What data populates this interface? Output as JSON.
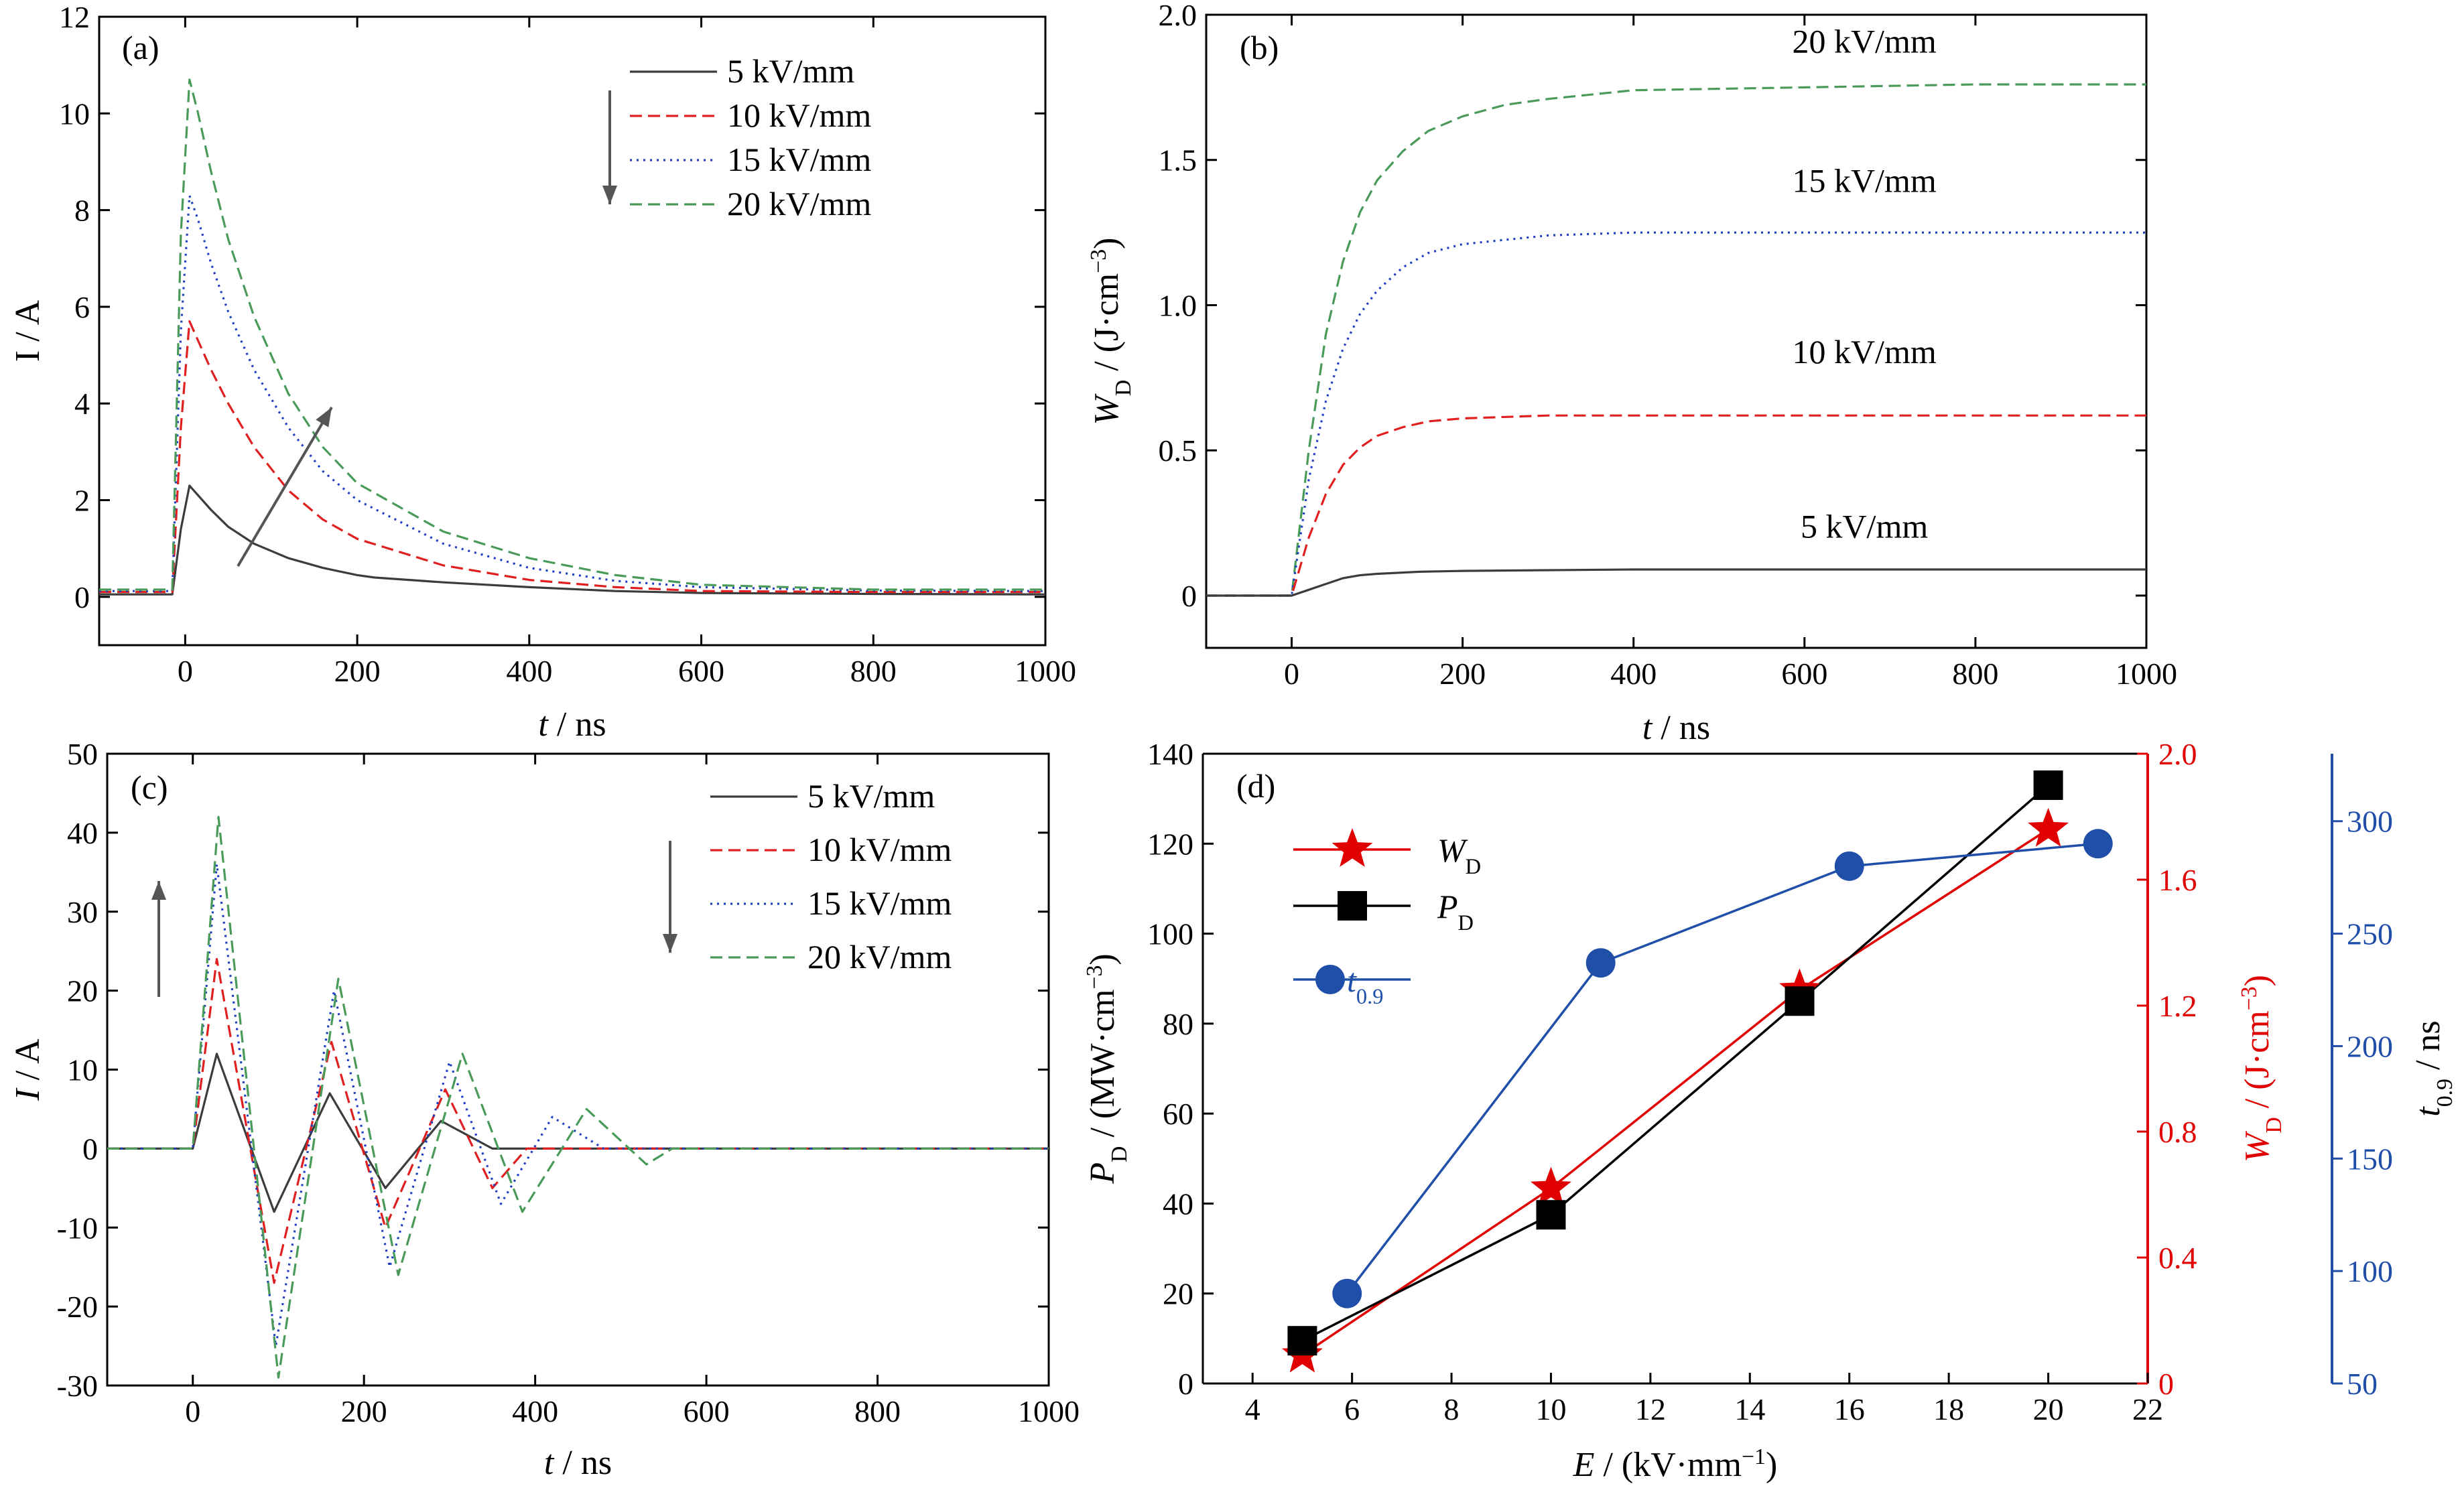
{
  "colors": {
    "s5": "#3c3c3c",
    "s10": "#e02020",
    "s15": "#2040c0",
    "s20": "#4a9a5a",
    "wd": "#e00000",
    "pd": "#000000",
    "t09": "#1f4fa8",
    "arrow": "#555555"
  },
  "chart_data": [
    {
      "id": "a",
      "type": "line",
      "panel_label": "(a)",
      "xlabel_var": "t",
      "xlabel_unit": " / ns",
      "ylabel": "I / A",
      "xlim": [
        -100,
        1000
      ],
      "ylim": [
        -1,
        12
      ],
      "xticks": [
        0,
        200,
        400,
        600,
        800,
        1000
      ],
      "yticks": [
        0,
        2,
        4,
        6,
        8,
        10,
        12
      ],
      "legend": {
        "position": "top-right",
        "entries": [
          "5 kV/mm",
          "10 kV/mm",
          "15 kV/mm",
          "20 kV/mm"
        ]
      },
      "series": [
        {
          "name": "5 kV/mm",
          "style": "solid",
          "color": "#3c3c3c",
          "points": [
            [
              -100,
              0.05
            ],
            [
              -15,
              0.05
            ],
            [
              -5,
              1.4
            ],
            [
              5,
              2.3
            ],
            [
              15,
              2.1
            ],
            [
              30,
              1.8
            ],
            [
              50,
              1.45
            ],
            [
              80,
              1.1
            ],
            [
              120,
              0.8
            ],
            [
              160,
              0.6
            ],
            [
              200,
              0.45
            ],
            [
              220,
              0.4
            ],
            [
              300,
              0.3
            ],
            [
              400,
              0.2
            ],
            [
              500,
              0.12
            ],
            [
              600,
              0.08
            ],
            [
              800,
              0.06
            ],
            [
              1000,
              0.05
            ]
          ]
        },
        {
          "name": "10 kV/mm",
          "style": "dashed",
          "color": "#e02020",
          "points": [
            [
              -100,
              0.1
            ],
            [
              -15,
              0.1
            ],
            [
              -5,
              3.5
            ],
            [
              5,
              5.7
            ],
            [
              15,
              5.3
            ],
            [
              30,
              4.7
            ],
            [
              50,
              4.0
            ],
            [
              80,
              3.1
            ],
            [
              120,
              2.2
            ],
            [
              160,
              1.6
            ],
            [
              200,
              1.2
            ],
            [
              300,
              0.65
            ],
            [
              400,
              0.35
            ],
            [
              500,
              0.2
            ],
            [
              600,
              0.12
            ],
            [
              800,
              0.1
            ],
            [
              1000,
              0.1
            ]
          ]
        },
        {
          "name": "15 kV/mm",
          "style": "dotted",
          "color": "#2040c0",
          "points": [
            [
              -100,
              0.12
            ],
            [
              -15,
              0.12
            ],
            [
              -5,
              5.5
            ],
            [
              5,
              8.3
            ],
            [
              15,
              7.8
            ],
            [
              30,
              6.9
            ],
            [
              50,
              5.9
            ],
            [
              80,
              4.7
            ],
            [
              120,
              3.5
            ],
            [
              160,
              2.6
            ],
            [
              200,
              2.0
            ],
            [
              300,
              1.1
            ],
            [
              400,
              0.6
            ],
            [
              500,
              0.33
            ],
            [
              600,
              0.2
            ],
            [
              800,
              0.13
            ],
            [
              1000,
              0.12
            ]
          ]
        },
        {
          "name": "20 kV/mm",
          "style": "dashed",
          "color": "#4a9a5a",
          "points": [
            [
              -100,
              0.15
            ],
            [
              -15,
              0.15
            ],
            [
              -5,
              7.5
            ],
            [
              5,
              10.7
            ],
            [
              15,
              10.0
            ],
            [
              30,
              8.8
            ],
            [
              50,
              7.4
            ],
            [
              80,
              5.8
            ],
            [
              120,
              4.2
            ],
            [
              160,
              3.1
            ],
            [
              200,
              2.35
            ],
            [
              300,
              1.35
            ],
            [
              400,
              0.8
            ],
            [
              500,
              0.45
            ],
            [
              600,
              0.25
            ],
            [
              800,
              0.15
            ],
            [
              1000,
              0.15
            ]
          ]
        }
      ]
    },
    {
      "id": "b",
      "type": "line",
      "panel_label": "(b)",
      "xlabel_var": "t",
      "xlabel_unit": " / ns",
      "ylabel_var": "W",
      "ylabel_sub": "D",
      "ylabel_unit": " / (J·cm",
      "ylabel_sup": "−3",
      "ylabel_close": ")",
      "xlim": [
        -100,
        1000
      ],
      "ylim": [
        -0.18,
        2.0
      ],
      "xticks": [
        0,
        200,
        400,
        600,
        800,
        1000
      ],
      "yticks": [
        0,
        0.5,
        1.0,
        1.5,
        2.0
      ],
      "labels": [
        {
          "text": "20 kV/mm",
          "x": 670,
          "y": 1.87
        },
        {
          "text": "15 kV/mm",
          "x": 670,
          "y": 1.39
        },
        {
          "text": "10 kV/mm",
          "x": 670,
          "y": 0.8
        },
        {
          "text": "5 kV/mm",
          "x": 670,
          "y": 0.2
        }
      ],
      "series": [
        {
          "name": "20 kV/mm",
          "style": "dashed",
          "color": "#4a9a5a",
          "points": [
            [
              -100,
              0
            ],
            [
              0,
              0
            ],
            [
              20,
              0.5
            ],
            [
              40,
              0.9
            ],
            [
              60,
              1.15
            ],
            [
              80,
              1.32
            ],
            [
              100,
              1.43
            ],
            [
              130,
              1.53
            ],
            [
              160,
              1.6
            ],
            [
              200,
              1.65
            ],
            [
              250,
              1.69
            ],
            [
              300,
              1.71
            ],
            [
              400,
              1.74
            ],
            [
              600,
              1.75
            ],
            [
              800,
              1.76
            ],
            [
              1000,
              1.76
            ]
          ]
        },
        {
          "name": "15 kV/mm",
          "style": "dotted",
          "color": "#2040c0",
          "points": [
            [
              -100,
              0
            ],
            [
              0,
              0
            ],
            [
              20,
              0.4
            ],
            [
              40,
              0.67
            ],
            [
              60,
              0.85
            ],
            [
              80,
              0.97
            ],
            [
              100,
              1.05
            ],
            [
              130,
              1.13
            ],
            [
              160,
              1.18
            ],
            [
              200,
              1.21
            ],
            [
              300,
              1.24
            ],
            [
              400,
              1.25
            ],
            [
              600,
              1.25
            ],
            [
              1000,
              1.25
            ]
          ]
        },
        {
          "name": "10 kV/mm",
          "style": "dashed",
          "color": "#e02020",
          "points": [
            [
              -100,
              0
            ],
            [
              0,
              0
            ],
            [
              20,
              0.2
            ],
            [
              40,
              0.35
            ],
            [
              60,
              0.45
            ],
            [
              80,
              0.51
            ],
            [
              100,
              0.55
            ],
            [
              130,
              0.58
            ],
            [
              160,
              0.6
            ],
            [
              200,
              0.61
            ],
            [
              300,
              0.62
            ],
            [
              1000,
              0.62
            ]
          ]
        },
        {
          "name": "5 kV/mm",
          "style": "solid",
          "color": "#3c3c3c",
          "points": [
            [
              -100,
              0
            ],
            [
              0,
              0
            ],
            [
              20,
              0.02
            ],
            [
              40,
              0.04
            ],
            [
              60,
              0.06
            ],
            [
              80,
              0.07
            ],
            [
              100,
              0.075
            ],
            [
              150,
              0.082
            ],
            [
              200,
              0.085
            ],
            [
              400,
              0.09
            ],
            [
              1000,
              0.09
            ]
          ]
        }
      ]
    },
    {
      "id": "c",
      "type": "line",
      "panel_label": "(c)",
      "xlabel_var": "t",
      "xlabel_unit": " / ns",
      "ylabel_var": "I",
      "ylabel_unit": " / A",
      "xlim": [
        -100,
        1000
      ],
      "ylim": [
        -30,
        50
      ],
      "xticks": [
        0,
        200,
        400,
        600,
        800,
        1000
      ],
      "yticks": [
        -30,
        -20,
        -10,
        0,
        10,
        20,
        30,
        40,
        50
      ],
      "legend": {
        "position": "top-right",
        "entries": [
          "5 kV/mm",
          "10 kV/mm",
          "15 kV/mm",
          "20 kV/mm"
        ]
      },
      "series": [
        {
          "name": "5 kV/mm",
          "style": "solid",
          "color": "#3c3c3c",
          "points": [
            [
              -100,
              0
            ],
            [
              0,
              0
            ],
            [
              28,
              12
            ],
            [
              95,
              -8
            ],
            [
              160,
              7
            ],
            [
              225,
              -5
            ],
            [
              290,
              3.5
            ],
            [
              350,
              0
            ],
            [
              1000,
              0
            ]
          ]
        },
        {
          "name": "10 kV/mm",
          "style": "dashed",
          "color": "#e02020",
          "points": [
            [
              -100,
              0
            ],
            [
              0,
              0
            ],
            [
              28,
              24
            ],
            [
              95,
              -17
            ],
            [
              162,
              13.5
            ],
            [
              225,
              -10
            ],
            [
              295,
              7.5
            ],
            [
              350,
              -5
            ],
            [
              390,
              0
            ],
            [
              1000,
              0
            ]
          ]
        },
        {
          "name": "15 kV/mm",
          "style": "dotted",
          "color": "#2040c0",
          "points": [
            [
              -100,
              0
            ],
            [
              0,
              0
            ],
            [
              28,
              36
            ],
            [
              97,
              -25
            ],
            [
              165,
              20
            ],
            [
              230,
              -15
            ],
            [
              300,
              11
            ],
            [
              360,
              -7
            ],
            [
              420,
              4
            ],
            [
              480,
              0
            ],
            [
              1000,
              0
            ]
          ]
        },
        {
          "name": "20 kV/mm",
          "style": "dashed",
          "color": "#4a9a5a",
          "points": [
            [
              -100,
              0
            ],
            [
              0,
              0
            ],
            [
              30,
              42
            ],
            [
              100,
              -29
            ],
            [
              170,
              21.5
            ],
            [
              240,
              -16
            ],
            [
              315,
              12
            ],
            [
              385,
              -8
            ],
            [
              460,
              5
            ],
            [
              530,
              -2
            ],
            [
              560,
              0
            ],
            [
              1000,
              0
            ]
          ]
        }
      ]
    },
    {
      "id": "d",
      "type": "scatter",
      "panel_label": "(d)",
      "xlabel_var": "E",
      "xlabel_unit": " / (kV·mm",
      "xlabel_sup": "−1",
      "xlabel_close": ")",
      "ylabel_var": "P",
      "ylabel_sub": "D",
      "ylabel_unit": " / (MW·cm",
      "ylabel_sup": "−3",
      "ylabel_close": ")",
      "y2label_var": "W",
      "y2label_sub": "D",
      "y2label_unit": " / (J·cm",
      "y2label_sup": "−3",
      "y2label_close": ")",
      "y3label_var": "t",
      "y3label_sub": "0.9",
      "y3label_unit": " / ns",
      "xlim": [
        3,
        22
      ],
      "ylim": [
        0,
        140
      ],
      "y2lim": [
        0,
        2.0
      ],
      "y3lim": [
        50,
        330
      ],
      "xticks": [
        4,
        6,
        8,
        10,
        12,
        14,
        16,
        18,
        20,
        22
      ],
      "yticks": [
        0,
        20,
        40,
        60,
        80,
        100,
        120,
        140
      ],
      "y2ticks": [
        "0",
        "0.4",
        "0.8",
        "1.2",
        "1.6",
        "2.0"
      ],
      "y3ticks": [
        50,
        100,
        150,
        200,
        250,
        300
      ],
      "legend": {
        "position": "top-left",
        "entries": [
          {
            "var": "W",
            "sub": "D"
          },
          {
            "var": "P",
            "sub": "D"
          },
          {
            "var": "t",
            "sub": "0.9"
          }
        ]
      },
      "series": [
        {
          "name": "WD",
          "marker": "star",
          "axis": "y2",
          "color": "#e00000",
          "points": [
            [
              5,
              0.09
            ],
            [
              10,
              0.62
            ],
            [
              15,
              1.25
            ],
            [
              20,
              1.76
            ]
          ]
        },
        {
          "name": "PD",
          "marker": "square",
          "axis": "y",
          "color": "#000000",
          "points": [
            [
              5,
              9.5
            ],
            [
              10,
              37.5
            ],
            [
              15,
              85
            ],
            [
              20,
              133
            ]
          ]
        },
        {
          "name": "t0.9",
          "marker": "circle",
          "axis": "y3",
          "color": "#1f4fa8",
          "points": [
            [
              5.9,
              90
            ],
            [
              11,
              237
            ],
            [
              16,
              280
            ],
            [
              21,
              290
            ]
          ]
        }
      ]
    }
  ]
}
